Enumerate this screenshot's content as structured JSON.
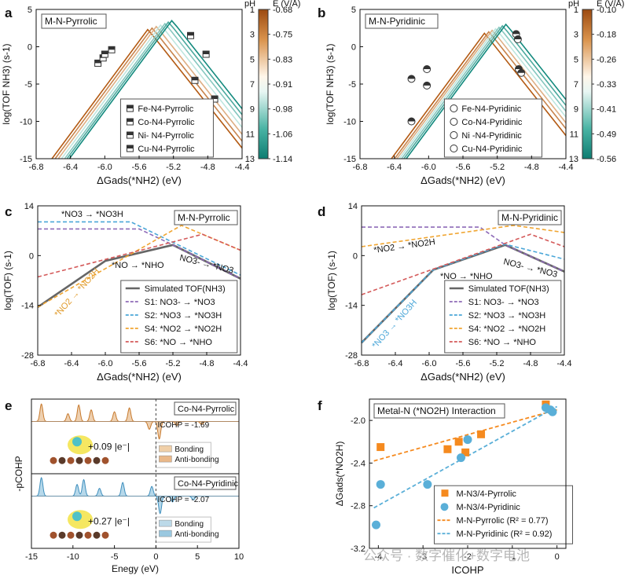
{
  "figure": {
    "panels": [
      {
        "letter": "a",
        "box_label": "M-N-Pyrrolic"
      },
      {
        "letter": "b",
        "box_label": "M-N-Pyridinic"
      },
      {
        "letter": "c",
        "box_label": "M-N-Pyrrolic"
      },
      {
        "letter": "d",
        "box_label": "M-N-Pyridinic"
      },
      {
        "letter": "e"
      },
      {
        "letter": "f",
        "box_label": "Metal-N (*NO2H) Interaction"
      }
    ],
    "watermark": "公众号 · 数字催化+数字电池"
  },
  "colors": {
    "cbar_top": "#b35a13",
    "cbar_mid": "#ffffff",
    "cbar_bottom": "#138a7e",
    "s1": "#8e6bb8",
    "s2": "#4aa6d8",
    "s4": "#f0a531",
    "s6": "#d45a5a",
    "sim": "#666666",
    "orange": "#f58a1f",
    "blue": "#5aafd8",
    "bond_orange": "#e0a96f",
    "bond_blue": "#7ab8d8"
  },
  "chart_data": [
    {
      "id": "a",
      "type": "line",
      "title": "M-N-Pyrrolic",
      "xlabel": "ΔGads(*NH2) (eV)",
      "ylabel": "log(TOF NH3) (s-1)",
      "xlim": [
        -6.8,
        -4.4
      ],
      "ylim": [
        -15,
        5
      ],
      "xticks": [
        "-6.8",
        "-6.4",
        "-6.0",
        "-5.6",
        "-5.2",
        "-4.8",
        "-4.4"
      ],
      "yticks": [
        "-15",
        "-10",
        "-5",
        "0",
        "5"
      ],
      "series_note": "volcano curves, one per pH 1..13",
      "series": [
        {
          "pH": 1,
          "peak_x": -5.5,
          "peak_y": 2.3
        },
        {
          "pH": 3,
          "peak_x": -5.45,
          "peak_y": 2.5
        },
        {
          "pH": 5,
          "peak_x": -5.4,
          "peak_y": 2.7
        },
        {
          "pH": 7,
          "peak_x": -5.35,
          "peak_y": 2.9
        },
        {
          "pH": 9,
          "peak_x": -5.3,
          "peak_y": 3.1
        },
        {
          "pH": 11,
          "peak_x": -5.26,
          "peak_y": 3.3
        },
        {
          "pH": 13,
          "peak_x": -5.22,
          "peak_y": 3.5
        }
      ],
      "legend": [
        "Fe-N4-Pyrrolic",
        "Co-N4-Pyrrolic",
        "Ni- N4-Pyrrolic",
        "Cu-N4-Pyrrolic"
      ],
      "points": [
        {
          "x": -6.08,
          "y": -2.2
        },
        {
          "x": -6.02,
          "y": -1.5
        },
        {
          "x": -6.0,
          "y": -1.0
        },
        {
          "x": -5.92,
          "y": -0.4
        },
        {
          "x": -5.0,
          "y": 1.5
        },
        {
          "x": -4.95,
          "y": -4.5
        },
        {
          "x": -4.82,
          "y": -1.0
        },
        {
          "x": -4.72,
          "y": -7.0
        }
      ],
      "colorbar": {
        "pH_label": "pH",
        "e_label": "E (V/Å)",
        "pH_ticks": [
          "1",
          "3",
          "5",
          "7",
          "9",
          "11",
          "13"
        ],
        "e_ticks": [
          "-0.68",
          "-0.75",
          "-0.83",
          "-0.91",
          "-0.98",
          "-1.06",
          "-1.14"
        ]
      }
    },
    {
      "id": "b",
      "type": "line",
      "title": "M-N-Pyridinic",
      "xlabel": "ΔGads(*NH2) (eV)",
      "ylabel": "log(TOF NH3) (s-1)",
      "xlim": [
        -6.8,
        -4.4
      ],
      "ylim": [
        -15,
        5
      ],
      "xticks": [
        "-6.8",
        "-6.4",
        "-6.0",
        "-5.6",
        "-5.2",
        "-4.8",
        "-4.4"
      ],
      "yticks": [
        "-15",
        "-10",
        "-5",
        "0",
        "5"
      ],
      "series": [
        {
          "pH": 1,
          "peak_x": -5.35,
          "peak_y": 1.8
        },
        {
          "pH": 3,
          "peak_x": -5.3,
          "peak_y": 2.0
        },
        {
          "pH": 5,
          "peak_x": -5.26,
          "peak_y": 2.2
        },
        {
          "pH": 7,
          "peak_x": -5.22,
          "peak_y": 2.4
        },
        {
          "pH": 9,
          "peak_x": -5.18,
          "peak_y": 2.6
        },
        {
          "pH": 11,
          "peak_x": -5.14,
          "peak_y": 2.8
        },
        {
          "pH": 13,
          "peak_x": -5.1,
          "peak_y": 3.0
        }
      ],
      "legend": [
        "Fe-N4-Pyridinic",
        "Co-N4-Pyridinic",
        "Ni -N4-Pyridinic",
        "Cu-N4-Pyridinic"
      ],
      "points": [
        {
          "x": -6.2,
          "y": -4.3
        },
        {
          "x": -6.2,
          "y": -10.0
        },
        {
          "x": -6.02,
          "y": -3.0
        },
        {
          "x": -6.02,
          "y": -5.2
        },
        {
          "x": -4.98,
          "y": 1.7
        },
        {
          "x": -4.96,
          "y": 1.0
        },
        {
          "x": -4.95,
          "y": -3.0
        },
        {
          "x": -4.92,
          "y": -3.5
        }
      ],
      "colorbar": {
        "pH_label": "pH",
        "e_label": "E (V/Å)",
        "pH_ticks": [
          "1",
          "3",
          "5",
          "7",
          "9",
          "11",
          "13"
        ],
        "e_ticks": [
          "-0.10",
          "-0.18",
          "-0.26",
          "-0.33",
          "-0.41",
          "-0.49",
          "-0.56"
        ]
      }
    },
    {
      "id": "c",
      "type": "line",
      "title": "M-N-Pyrrolic",
      "xlabel": "ΔGads(*NH2) (eV)",
      "ylabel": "log(TOF) (s-1)",
      "xlim": [
        -6.8,
        -4.4
      ],
      "ylim": [
        -28,
        14
      ],
      "xticks": [
        "-6.8",
        "-6.4",
        "-6.0",
        "-5.6",
        "-5.2",
        "-4.8",
        "-4.4"
      ],
      "yticks": [
        "-28",
        "-14",
        "0",
        "14"
      ],
      "series": [
        {
          "name": "Simulated TOF(NH3)",
          "style": "solid",
          "x": [
            -6.8,
            -6.0,
            -5.2,
            -4.4
          ],
          "y": [
            -14.5,
            -1.5,
            3.0,
            -6.5
          ]
        },
        {
          "name": "S1: NO3- → *NO3",
          "style": "dash",
          "x": [
            -6.8,
            -5.6,
            -5.2,
            -4.4
          ],
          "y": [
            7.5,
            7.5,
            3.0,
            -6.5
          ]
        },
        {
          "name": "S2: *NO3 → *NO3H",
          "style": "dash",
          "x": [
            -6.8,
            -5.7,
            -4.4
          ],
          "y": [
            9.5,
            9.5,
            -5.5
          ]
        },
        {
          "name": "S4: *NO2 → *NO2H",
          "style": "dash",
          "x": [
            -6.8,
            -5.1,
            -4.4
          ],
          "y": [
            -14.5,
            8.5,
            1.5
          ]
        },
        {
          "name": "S6: *NO → *NHO",
          "style": "dash",
          "x": [
            -6.8,
            -4.85,
            -4.4
          ],
          "y": [
            -6.0,
            6.0,
            1.5
          ]
        }
      ],
      "annotations": [
        "*NO3 → *NO3H",
        "*NO → *NHO",
        "NO3- → *NO3",
        "*NO2 → *NO2H"
      ],
      "legend": [
        "Simulated TOF(NH3)",
        "S1: NO3- → *NO3",
        "S2: *NO3 → *NO3H",
        "S4: *NO2 → *NO2H",
        "S6: *NO → *NHO"
      ]
    },
    {
      "id": "d",
      "type": "line",
      "title": "M-N-Pyridinic",
      "xlabel": "ΔGads(*NH2) (eV)",
      "ylabel": "log(TOF) (s-1)",
      "xlim": [
        -6.8,
        -4.4
      ],
      "ylim": [
        -28,
        14
      ],
      "xticks": [
        "-6.8",
        "-6.4",
        "-6.0",
        "-5.6",
        "-5.2",
        "-4.8",
        "-4.4"
      ],
      "yticks": [
        "-28",
        "-14",
        "0",
        "14"
      ],
      "series": [
        {
          "name": "Simulated TOF(NH3)",
          "style": "solid",
          "x": [
            -6.8,
            -5.95,
            -5.1,
            -4.4
          ],
          "y": [
            -24.5,
            -4.0,
            3.0,
            -4.5
          ]
        },
        {
          "name": "S1: NO3- → *NO3",
          "style": "dash",
          "x": [
            -6.8,
            -5.4,
            -5.1,
            -4.4
          ],
          "y": [
            8.0,
            8.0,
            3.0,
            -4.5
          ]
        },
        {
          "name": "S2: *NO3 → *NO3H",
          "style": "dash",
          "x": [
            -6.8,
            -5.95,
            -5.1,
            -4.4
          ],
          "y": [
            -24.5,
            -4.0,
            3.2,
            -1.0
          ]
        },
        {
          "name": "S4: *NO2 → *NO2H",
          "style": "dash",
          "x": [
            -6.8,
            -5.0,
            -4.4
          ],
          "y": [
            2.5,
            8.5,
            6.5
          ]
        },
        {
          "name": "S6: *NO → *NHO",
          "style": "dash",
          "x": [
            -6.8,
            -4.8,
            -4.4
          ],
          "y": [
            -11.0,
            6.0,
            2.5
          ]
        }
      ],
      "annotations": [
        "*NO2 → *NO2H",
        "*NO → *NHO",
        "NO3- → *NO3",
        "*NO3 → *NO3H"
      ],
      "legend": [
        "Simulated TOF(NH3)",
        "S1: NO3- → *NO3",
        "S2: *NO3 → *NO3H",
        "S4: *NO2 → *NO2H",
        "S6: *NO → *NHO"
      ]
    },
    {
      "id": "e",
      "type": "area",
      "xlabel": "Enegy (eV)",
      "ylabel": "-pCOHP",
      "xlim": [
        -15,
        10
      ],
      "xticks": [
        "-15",
        "-10",
        "-5",
        "0",
        "5",
        "10"
      ],
      "subpanels": [
        {
          "label": "Co-N4-Pyrrolic",
          "icohp": "ICOHP = -1.69",
          "charge": "+0.09 |e⁻|",
          "peaks": [
            {
              "x": -13.8,
              "h": 0.9
            },
            {
              "x": -10.6,
              "h": 0.4
            },
            {
              "x": -9.3,
              "h": 0.85
            },
            {
              "x": -7.8,
              "h": 0.6
            },
            {
              "x": -5.0,
              "h": 0.5
            },
            {
              "x": -3.2,
              "h": 0.7
            },
            {
              "x": -0.8,
              "h": -0.4
            },
            {
              "x": 0.4,
              "h": -0.9
            },
            {
              "x": 2.5,
              "h": -0.2
            },
            {
              "x": 5.5,
              "h": -0.15
            }
          ]
        },
        {
          "label": "Co-N4-Pyridinic",
          "icohp": "ICOHP = -2.07",
          "charge": "+0.27 |e⁻|",
          "peaks": [
            {
              "x": -13.8,
              "h": 0.95
            },
            {
              "x": -9.5,
              "h": 0.6
            },
            {
              "x": -8.7,
              "h": 0.85
            },
            {
              "x": -6.8,
              "h": 0.4
            },
            {
              "x": -4.0,
              "h": 0.7
            },
            {
              "x": -0.5,
              "h": 0.5
            },
            {
              "x": 0.5,
              "h": -0.9
            },
            {
              "x": 2.0,
              "h": -0.3
            },
            {
              "x": 4.5,
              "h": -0.2
            }
          ]
        }
      ],
      "legend": [
        "Bonding",
        "Anti-bonding"
      ]
    },
    {
      "id": "f",
      "type": "scatter",
      "title": "Metal-N (*NO2H) Interaction",
      "xlabel": "ICOHP",
      "ylabel": "ΔGads(*NO2H)",
      "xlim": [
        -4.2,
        0.2
      ],
      "ylim": [
        -3.2,
        -1.8
      ],
      "xticks": [
        "-4",
        "-3",
        "-2",
        "-1",
        "0"
      ],
      "yticks": [
        "-3.2",
        "-2.8",
        "-2.4",
        "-2.0"
      ],
      "series": [
        {
          "name": "M-N3/4-Pyrrolic",
          "marker": "square",
          "x": [
            -3.95,
            -2.45,
            -2.2,
            -2.05,
            -1.7,
            -0.25
          ],
          "y": [
            -2.25,
            -2.27,
            -2.2,
            -2.3,
            -2.13,
            -1.85
          ]
        },
        {
          "name": "M-N3/4-Pyridinic",
          "marker": "circle",
          "x": [
            -4.05,
            -3.95,
            -2.9,
            -2.15,
            -2.0,
            -0.25,
            -0.15,
            -0.1
          ],
          "y": [
            -2.98,
            -2.6,
            -2.6,
            -2.35,
            -2.18,
            -1.88,
            -1.9,
            -1.92
          ]
        }
      ],
      "fits": [
        {
          "name": "M-N-Pyrrolic (R² = 0.77)",
          "x": [
            -4.1,
            0.0
          ],
          "y": [
            -2.38,
            -1.9
          ]
        },
        {
          "name": "M-N-Pyridinic (R² = 0.92)",
          "x": [
            -4.1,
            0.0
          ],
          "y": [
            -2.82,
            -1.87
          ]
        }
      ],
      "legend": [
        "M-N3/4-Pyrrolic",
        "M-N3/4-Pyridinic",
        "M-N-Pyrrolic (R² = 0.77)",
        "M-N-Pyridinic (R² = 0.92)"
      ]
    }
  ]
}
